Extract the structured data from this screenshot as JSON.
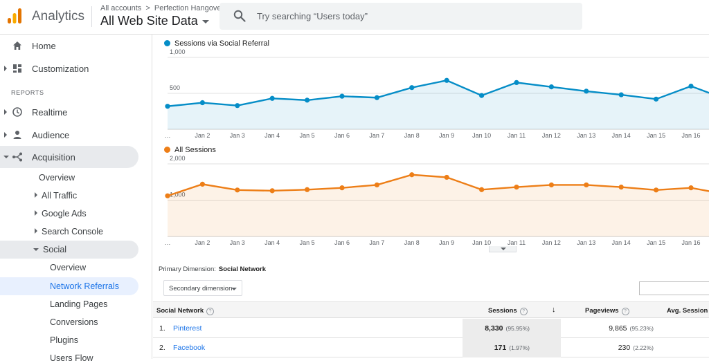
{
  "header": {
    "app_name": "Analytics",
    "breadcrumb_account": "All accounts",
    "breadcrumb_separator": ">",
    "breadcrumb_property": "Perfection Hangover",
    "view_name": "All Web Site Data",
    "search_placeholder": "Try searching “Users today”"
  },
  "sidebar": {
    "home": "Home",
    "customization": "Customization",
    "reports_heading": "REPORTS",
    "realtime": "Realtime",
    "audience": "Audience",
    "acquisition": "Acquisition",
    "acq_overview": "Overview",
    "all_traffic": "All Traffic",
    "google_ads": "Google Ads",
    "search_console": "Search Console",
    "social": "Social",
    "social_items": [
      "Overview",
      "Network Referrals",
      "Landing Pages",
      "Conversions",
      "Plugins",
      "Users Flow"
    ]
  },
  "colors": {
    "blue": "#058dc7",
    "orange": "#ed7e17",
    "accent": "#1a73e8"
  },
  "chart_data": [
    {
      "type": "line",
      "title": "Sessions via Social Referral",
      "color": "#058dc7",
      "x": [
        "…",
        "Jan 2",
        "Jan 3",
        "Jan 4",
        "Jan 5",
        "Jan 6",
        "Jan 7",
        "Jan 8",
        "Jan 9",
        "Jan 10",
        "Jan 11",
        "Jan 12",
        "Jan 13",
        "Jan 14",
        "Jan 15",
        "Jan 16",
        "…"
      ],
      "values": [
        320,
        370,
        330,
        430,
        405,
        460,
        440,
        580,
        680,
        470,
        650,
        590,
        530,
        480,
        420,
        600,
        420
      ],
      "ylim": [
        0,
        1000
      ],
      "yticks": [
        {
          "value": 1000,
          "label": "1,000"
        },
        {
          "value": 500,
          "label": "500"
        }
      ]
    },
    {
      "type": "line",
      "title": "All Sessions",
      "color": "#ed7e17",
      "x": [
        "…",
        "Jan 2",
        "Jan 3",
        "Jan 4",
        "Jan 5",
        "Jan 6",
        "Jan 7",
        "Jan 8",
        "Jan 9",
        "Jan 10",
        "Jan 11",
        "Jan 12",
        "Jan 13",
        "Jan 14",
        "Jan 15",
        "Jan 16",
        "…"
      ],
      "values": [
        1120,
        1440,
        1280,
        1260,
        1290,
        1340,
        1420,
        1700,
        1630,
        1290,
        1360,
        1420,
        1420,
        1360,
        1280,
        1340,
        1160
      ],
      "ylim": [
        0,
        2000
      ],
      "yticks": [
        {
          "value": 2000,
          "label": "2,000"
        },
        {
          "value": 1000,
          "label": "1,000"
        }
      ]
    }
  ],
  "table": {
    "primary_dimension_label": "Primary Dimension:",
    "primary_dimension_value": "Social Network",
    "secondary_dimension": "Secondary dimension",
    "columns": {
      "network": "Social Network",
      "sessions": "Sessions",
      "pageviews": "Pageviews",
      "avg_session": "Avg. Session D"
    },
    "help_glyph": "?",
    "sort_glyph": "↓",
    "rows": [
      {
        "num": "1.",
        "name": "Pinterest",
        "sessions": "8,330",
        "sessions_pct": "(95.95%)",
        "pageviews": "9,865",
        "pageviews_pct": "(95.23%)"
      },
      {
        "num": "2.",
        "name": "Facebook",
        "sessions": "171",
        "sessions_pct": "(1.97%)",
        "pageviews": "230",
        "pageviews_pct": "(2.22%)"
      }
    ]
  }
}
